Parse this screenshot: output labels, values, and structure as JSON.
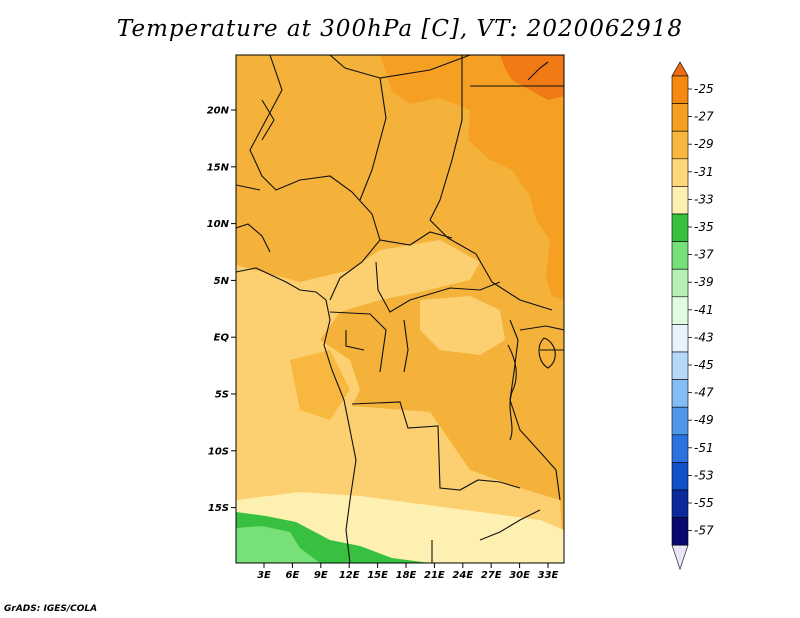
{
  "title": "Temperature at 300hPa [C], VT: 2020062918",
  "credit": "GrADS: IGES/COLA",
  "map": {
    "lat_labels": [
      "20N",
      "15N",
      "10N",
      "5N",
      "EQ",
      "5S",
      "10S",
      "15S"
    ],
    "lon_labels": [
      "3E",
      "6E",
      "9E",
      "12E",
      "15E",
      "18E",
      "21E",
      "24E",
      "27E",
      "30E",
      "33E"
    ]
  },
  "colorbar": {
    "labels": [
      "-25",
      "-27",
      "-29",
      "-31",
      "-33",
      "-35",
      "-37",
      "-39",
      "-41",
      "-43",
      "-45",
      "-47",
      "-49",
      "-51",
      "-53",
      "-55",
      "-57"
    ],
    "colors": [
      "#f06a10",
      "#f58a10",
      "#f5a020",
      "#f8b840",
      "#fcd878",
      "#fdf0b0",
      "#38c040",
      "#78e078",
      "#b4f0b4",
      "#e2fae2",
      "#e8f4fc",
      "#b4d8f8",
      "#84bcf4",
      "#5098ec",
      "#2a72e0",
      "#1050c8",
      "#0a2a9c",
      "#0a0a6e"
    ],
    "under_color": "#e8e6f8"
  }
}
